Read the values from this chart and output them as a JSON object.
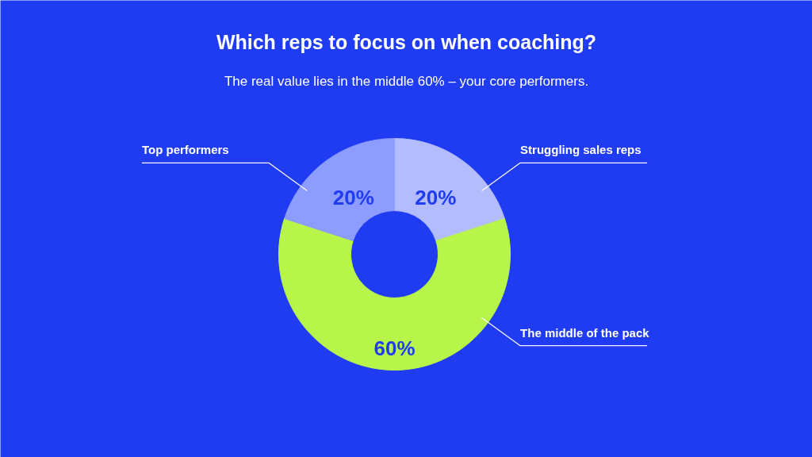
{
  "chart_data": {
    "type": "donut",
    "title": "Which reps to focus on when coaching?",
    "subtitle": "The real value lies in the middle 60% – your core performers.",
    "categories": [
      "Struggling sales reps",
      "The middle of the pack",
      "Top performers"
    ],
    "values": [
      20,
      60,
      20
    ],
    "colors": [
      "#b3bcff",
      "#b8f54a",
      "#8c9cff"
    ],
    "value_labels": [
      "20%",
      "60%",
      "20%"
    ]
  }
}
